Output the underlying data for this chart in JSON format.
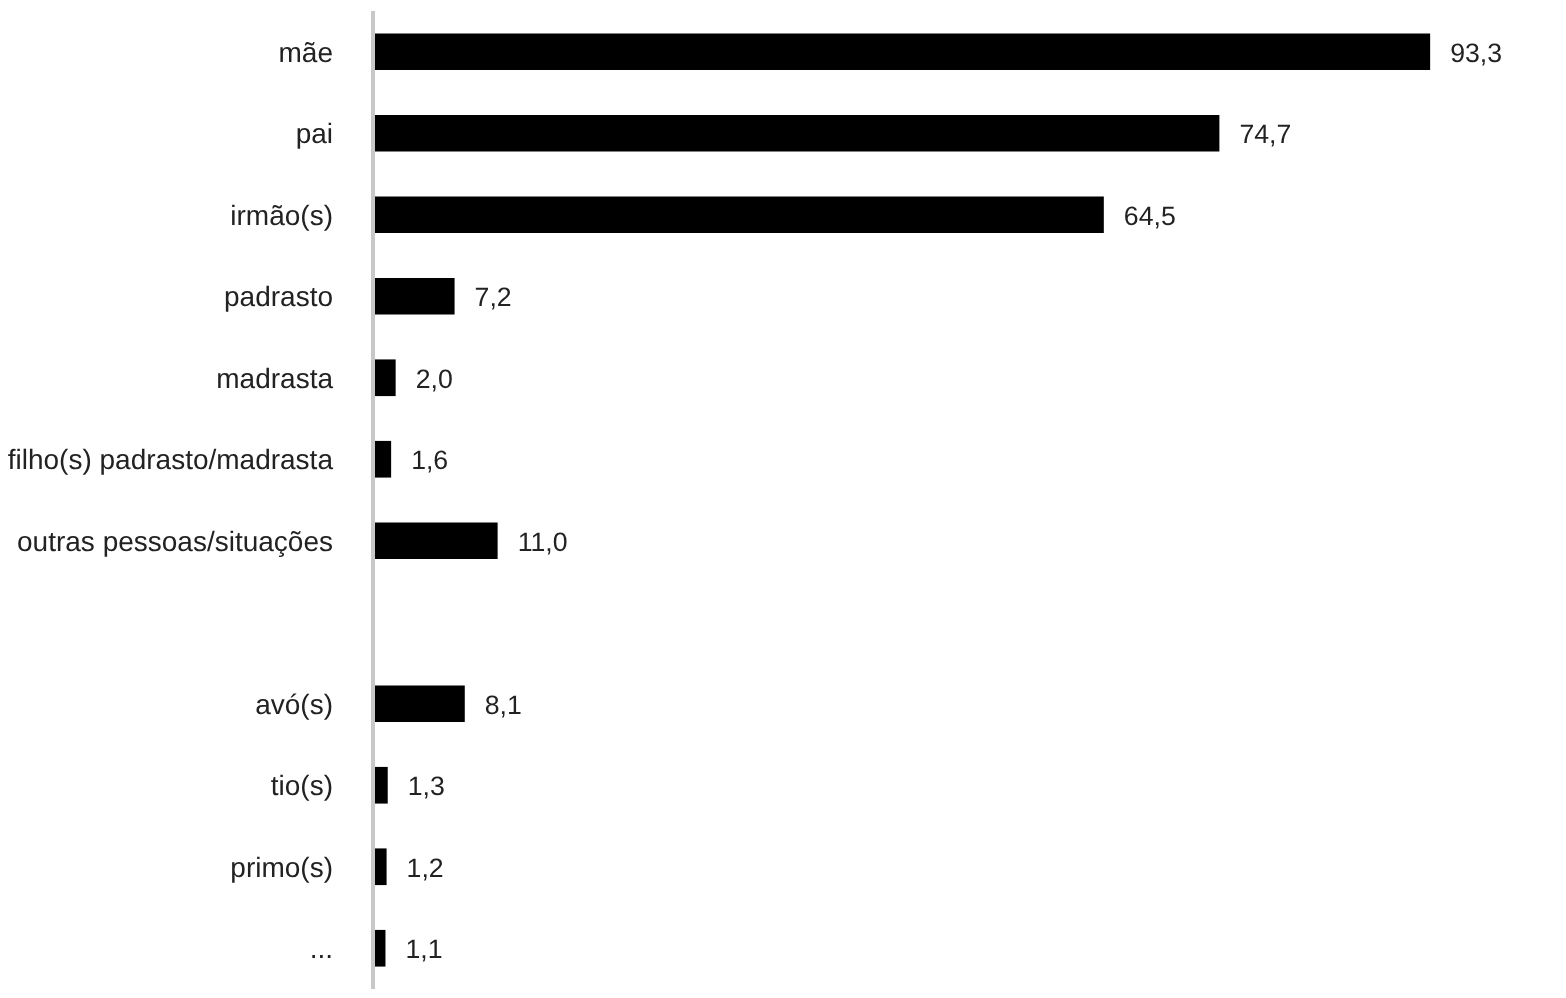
{
  "chart_data": {
    "type": "bar",
    "orientation": "horizontal",
    "categories": [
      "mãe",
      "pai",
      "irmão(s)",
      "padrasto",
      "madrasta",
      "filho(s) padrasto/madrasta",
      "outras pessoas/situações",
      null,
      "avó(s)",
      "tio(s)",
      "primo(s)",
      "..."
    ],
    "values": [
      93.3,
      74.7,
      64.5,
      7.2,
      2.0,
      1.6,
      11.0,
      null,
      8.1,
      1.3,
      1.2,
      1.1
    ],
    "value_labels": [
      "93,3",
      "74,7",
      "64,5",
      "7,2",
      "2,0",
      "1,6",
      "11,0",
      null,
      "8,1",
      "1,3",
      "1,2",
      "1,1"
    ],
    "color": "#000000",
    "tick_labels": "y",
    "grid": false
  }
}
